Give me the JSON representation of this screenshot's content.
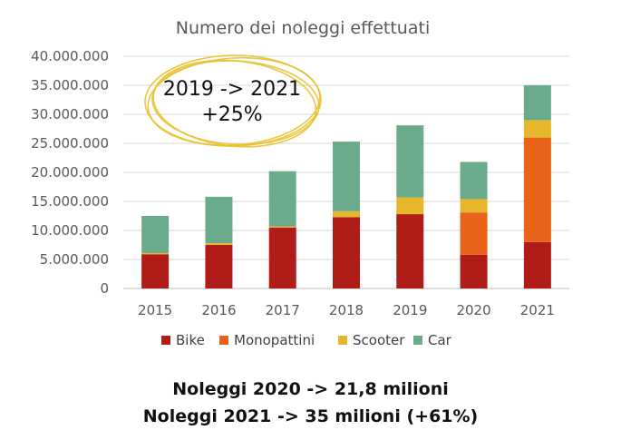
{
  "chart_data": {
    "type": "bar",
    "stacked": true,
    "title": "Numero dei noleggi effettuati",
    "categories": [
      "2015",
      "2016",
      "2017",
      "2018",
      "2019",
      "2020",
      "2021"
    ],
    "series": [
      {
        "name": "Bike",
        "color": "#b01c17",
        "values": [
          5900000,
          7500000,
          10500000,
          12300000,
          12800000,
          5800000,
          8000000
        ]
      },
      {
        "name": "Monopattini",
        "color": "#e9621a",
        "values": [
          0,
          0,
          0,
          0,
          0,
          7300000,
          18000000
        ]
      },
      {
        "name": "Scooter",
        "color": "#e6b72a",
        "values": [
          200000,
          300000,
          200000,
          1000000,
          2900000,
          2300000,
          3000000
        ]
      },
      {
        "name": "Car",
        "color": "#6aab8c",
        "values": [
          6400000,
          8000000,
          9500000,
          12000000,
          12400000,
          6400000,
          6000000
        ]
      }
    ],
    "ylim": [
      0,
      40000000
    ],
    "yticks": [
      "0",
      "5.000.000",
      "10.000.000",
      "15.000.000",
      "20.000.000",
      "25.000.000",
      "30.000.000",
      "35.000.000",
      "40.000.000"
    ],
    "grid": true,
    "legend_position": "bottom",
    "annotation": {
      "line1": "2019 -> 2021",
      "line2": "+25%",
      "circle_color": "#e8c22e"
    }
  },
  "footer": {
    "line1": "Noleggi 2020 -> 21,8 milioni",
    "line2": "Noleggi 2021 -> 35 milioni (+61%)"
  }
}
